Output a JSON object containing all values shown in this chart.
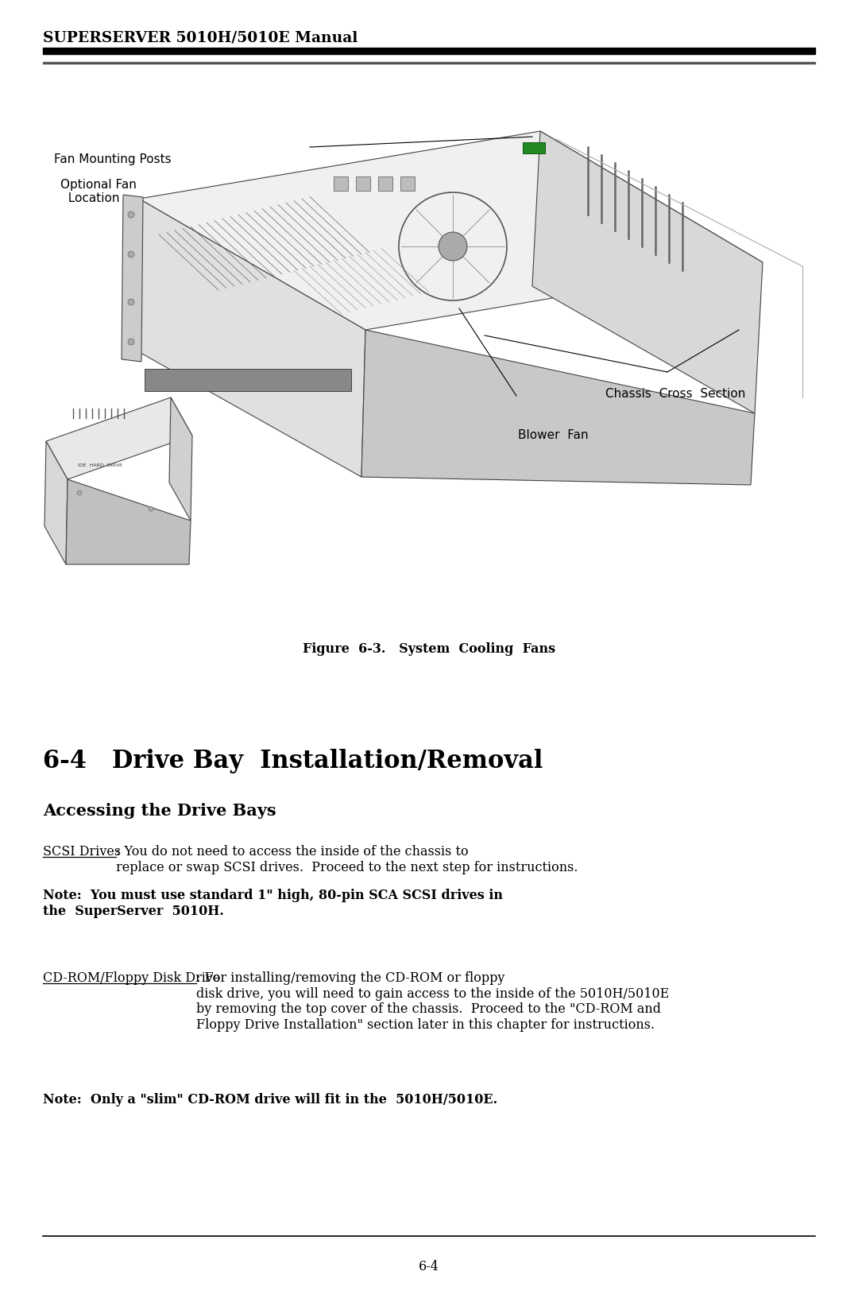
{
  "page_width": 10.8,
  "page_height": 16.48,
  "bg_color": "#ffffff",
  "header_text_display": "SUPERSERVER 5010H/5010E Manual",
  "section_title": "6-4   Drive Bay  Installation/Removal",
  "subsection_title": "Accessing the Drive Bays",
  "figure_caption": "Figure  6-3.   System  Cooling  Fans",
  "page_number": "6-4",
  "label_fan_mounting": "Fan Mounting Posts",
  "label_optional_fan": "Optional Fan\n  Location",
  "label_chassis": "Chassis  Cross  Section",
  "label_blower": "Blower  Fan",
  "para1_underline": "SCSI Drives",
  "para1_text": ": You do not need to access the inside of the chassis to\nreplace or swap SCSI drives.  Proceed to the next step for instructions.",
  "para1_bold": "Note:  You must use standard 1\" high, 80-pin SCA SCSI drives in\nthe  SuperServer  5010H.",
  "para2_underline": "CD-ROM/Floppy Disk Drive",
  "para2_text": ": For installing/removing the CD-ROM or floppy\ndisk drive, you will need to gain access to the inside of the 5010H/5010E\nby removing the top cover of the chassis.  Proceed to the \"CD-ROM and\nFloppy Drive Installation\" section later in this chapter for instructions.",
  "para2_bold": "Note:  Only a \"slim\" CD-ROM drive will fit in the  5010H/5010E."
}
